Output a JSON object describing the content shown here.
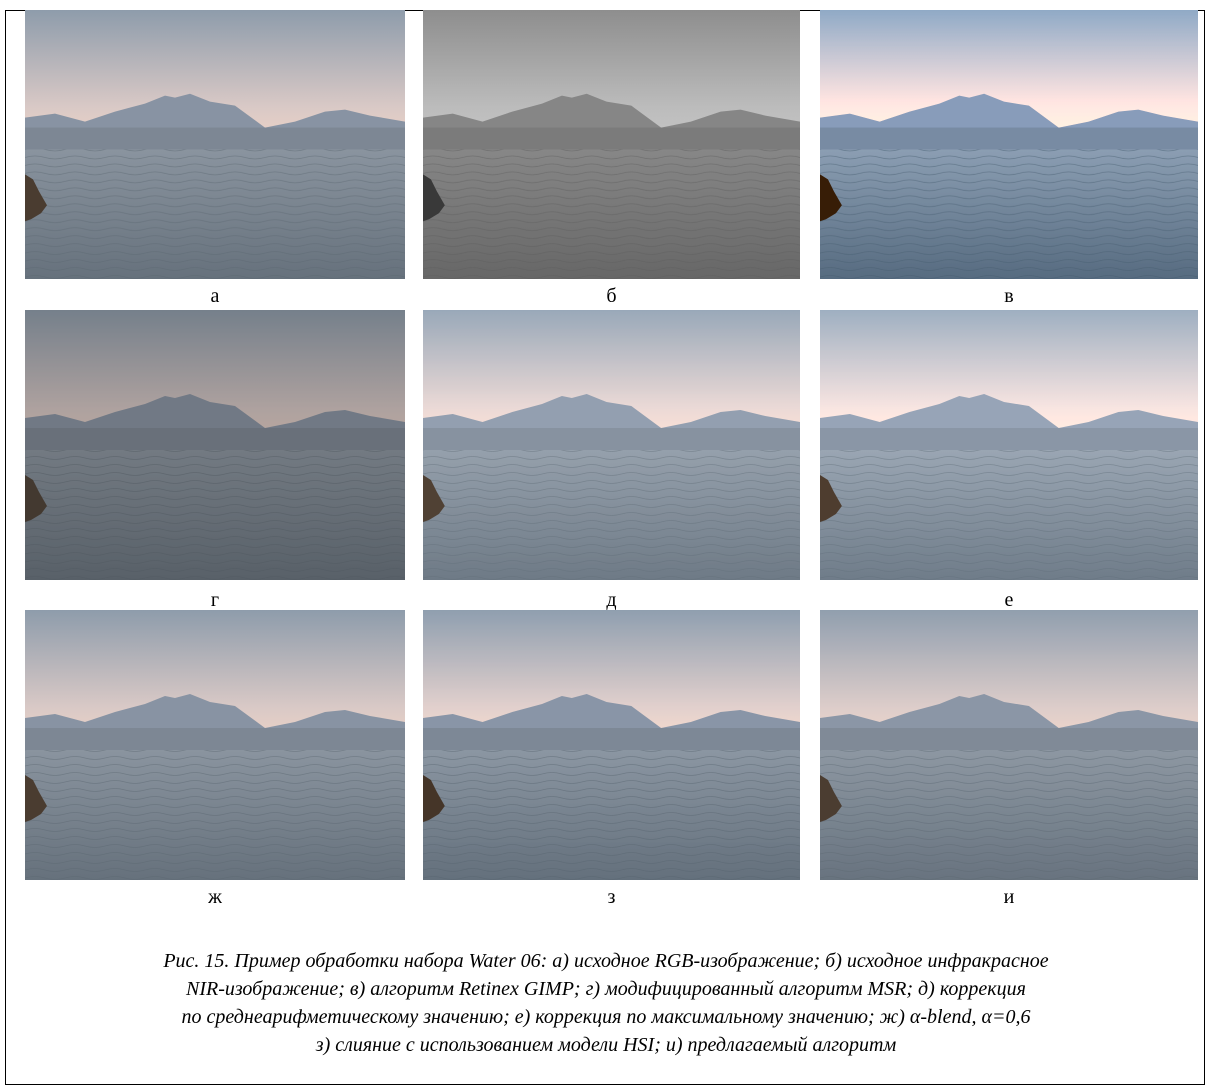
{
  "panels": [
    {
      "label": "а"
    },
    {
      "label": "б"
    },
    {
      "label": "в"
    },
    {
      "label": "г"
    },
    {
      "label": "д"
    },
    {
      "label": "е"
    },
    {
      "label": "ж"
    },
    {
      "label": "з"
    },
    {
      "label": "и"
    }
  ],
  "caption": {
    "lines": [
      "Рис. 15. Пример обработки набора Water 06: а) исходное RGB-изображение; б) исходное инфракрасное",
      "NIR-изображение; в) алгоритм Retinex GIMP; г) модифицированный алгоритм MSR; д) коррекция",
      "по среднеарифметическому значению; е) коррекция по максимальному значению; ж) α-blend, α=0,6",
      "з) слияние с использованием модели HSI; и) предлагаемый алгоритм"
    ]
  }
}
